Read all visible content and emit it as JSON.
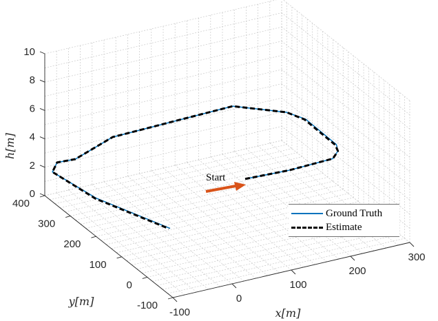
{
  "chart_data": {
    "type": "line3d",
    "title": "",
    "xlabel": "x[m]",
    "ylabel": "y[m]",
    "zlabel": "h[m]",
    "xlim": [
      -100,
      300
    ],
    "ylim": [
      -100,
      400
    ],
    "zlim": [
      0,
      10
    ],
    "x_ticks": [
      -100,
      0,
      100,
      200,
      300
    ],
    "y_ticks": [
      -100,
      0,
      100,
      200,
      300,
      400
    ],
    "z_ticks": [
      0,
      2,
      4,
      6,
      8,
      10
    ],
    "grid": true,
    "legend_position": "southeast-inside",
    "annotations": [
      {
        "text": "Start",
        "arrow_color": "#D95319"
      }
    ],
    "series": [
      {
        "name": "Ground Truth",
        "color": "#0072BD",
        "style": "solid",
        "points": [
          [
            180,
            265,
            0.4
          ],
          [
            240,
            232,
            0.9
          ],
          [
            300,
            200,
            1.6
          ],
          [
            305,
            192,
            2.2
          ],
          [
            295,
            175,
            3.0
          ],
          [
            215,
            110,
            6.5
          ],
          [
            185,
            115,
            7.2
          ],
          [
            120,
            175,
            7.4
          ],
          [
            -20,
            320,
            4.5
          ],
          [
            -70,
            350,
            3.0
          ],
          [
            -90,
            375,
            2.6
          ],
          [
            -100,
            370,
            2.1
          ],
          [
            -60,
            290,
            1.0
          ],
          [
            10,
            165,
            0.0
          ]
        ]
      },
      {
        "name": "Estimate",
        "color": "#000000",
        "style": "dashed",
        "points": [
          [
            180,
            265,
            0.4
          ],
          [
            240,
            232,
            0.9
          ],
          [
            300,
            200,
            1.6
          ],
          [
            305,
            192,
            2.2
          ],
          [
            293,
            175,
            3.0
          ],
          [
            213,
            110,
            6.5
          ],
          [
            185,
            115,
            7.2
          ],
          [
            120,
            175,
            7.4
          ],
          [
            -20,
            320,
            4.5
          ],
          [
            -70,
            350,
            3.0
          ],
          [
            -90,
            375,
            2.6
          ],
          [
            -100,
            370,
            2.1
          ],
          [
            -62,
            290,
            1.0
          ],
          [
            8,
            165,
            0.0
          ]
        ]
      }
    ]
  },
  "labels": {
    "x": "x[m]",
    "y": "y[m]",
    "z": "h[m]",
    "start": "Start"
  },
  "legend": {
    "ground_truth": "Ground Truth",
    "estimate": "Estimate"
  }
}
